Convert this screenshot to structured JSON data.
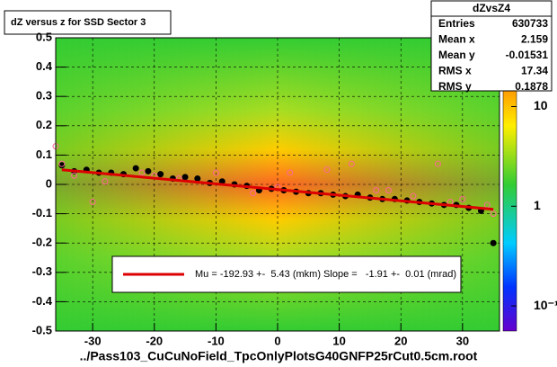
{
  "chart_data": {
    "type": "scatter",
    "title": "dZ versus  z for SSD Sector 3",
    "xlabel": "../Pass103_CuCuNoField_TpcOnlyPlotsG40GNFP25rCut0.5cm.root",
    "xlim": [
      -36,
      36
    ],
    "ylim": [
      -0.5,
      0.5
    ],
    "xticks": [
      -30,
      -20,
      -10,
      0,
      10,
      20,
      30
    ],
    "yticks": [
      -0.5,
      -0.4,
      -0.3,
      -0.2,
      -0.1,
      0,
      0.1,
      0.2,
      0.3,
      0.4,
      0.5
    ],
    "grid": true,
    "zlim": [
      0.056,
      49
    ],
    "zlog": true,
    "zticks": [
      {
        "value": 10,
        "label": "10"
      },
      {
        "value": 1,
        "label": "1"
      },
      {
        "value": 0.1,
        "label": "10⁻¹"
      }
    ],
    "series": [
      {
        "name": "profile",
        "color": "#000000",
        "x": [
          -35,
          -33,
          -31,
          -29,
          -27,
          -25,
          -23,
          -21,
          -19,
          -17,
          -15,
          -13,
          -11,
          -9,
          -7,
          -5,
          -3,
          -1,
          1,
          3,
          5,
          7,
          9,
          11,
          13,
          15,
          17,
          19,
          21,
          23,
          25,
          27,
          29,
          31,
          33,
          35
        ],
        "values": [
          0.065,
          0.045,
          0.05,
          0.04,
          0.04,
          0.035,
          0.055,
          0.045,
          0.035,
          0.02,
          0.025,
          0.02,
          0.005,
          0.01,
          0.0,
          -0.005,
          -0.02,
          -0.015,
          -0.02,
          -0.025,
          -0.03,
          -0.03,
          -0.035,
          -0.04,
          -0.035,
          -0.045,
          -0.05,
          -0.05,
          -0.055,
          -0.06,
          -0.065,
          -0.07,
          -0.07,
          -0.08,
          -0.09,
          -0.2
        ]
      },
      {
        "name": "outliers",
        "color": "#ff6699",
        "x": [
          -36,
          -35,
          -33,
          -30,
          -28,
          -22,
          -20,
          -16,
          -10,
          -4,
          0,
          2,
          8,
          12,
          16,
          18,
          22,
          26,
          28,
          30,
          34,
          35
        ],
        "values": [
          0.13,
          0.07,
          0.03,
          -0.06,
          0.01,
          0.04,
          0.03,
          0.02,
          0.04,
          -0.03,
          -0.01,
          0.04,
          0.05,
          0.07,
          -0.02,
          -0.02,
          -0.04,
          0.07,
          -0.06,
          -0.05,
          -0.07,
          -0.1
        ]
      }
    ],
    "fit": {
      "color": "#dd0000",
      "x": [
        -35,
        35
      ],
      "values": [
        0.05,
        -0.085
      ],
      "label": "Mu = -192.93 +-  5.43 (mkm) Slope =   -1.91 +-  0.01 (mrad)"
    },
    "stats": {
      "title": "dZvsZ4",
      "rows": [
        [
          "Entries",
          630733
        ],
        [
          "Mean x",
          2.159
        ],
        [
          "Mean y",
          -0.01531
        ],
        [
          "RMS x",
          17.34
        ],
        [
          "RMS y",
          0.1878
        ]
      ]
    }
  }
}
